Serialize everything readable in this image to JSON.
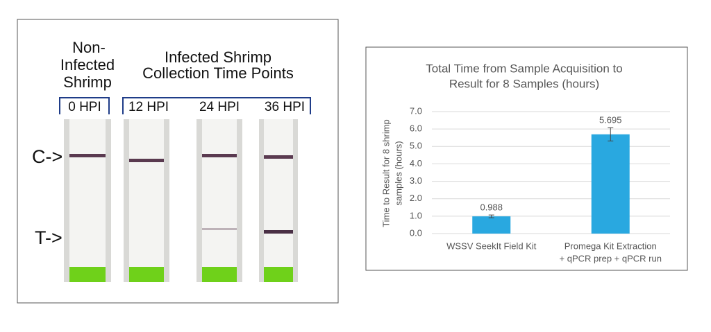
{
  "strip_panel": {
    "group_left": [
      "Non-",
      "Infected",
      "Shrimp"
    ],
    "group_right": [
      "Infected Shrimp",
      "Collection Time Points"
    ],
    "lanes": [
      "0 HPI",
      "12 HPI",
      "24 HPI",
      "36 HPI"
    ],
    "control_label": "C->",
    "test_label": "T->"
  },
  "chart_data": {
    "type": "bar",
    "title": [
      "Total Time from Sample Acquisition to",
      "Result for 8 Samples (hours)"
    ],
    "y_label": [
      "Time to Result for 8 shrimp",
      "samples (hours)"
    ],
    "categories": [
      [
        "WSSV SeekIt Field Kit"
      ],
      [
        "Promega Kit Extraction",
        "+ qPCR prep + qPCR run"
      ]
    ],
    "values": [
      0.988,
      5.695
    ],
    "errors": [
      0.08,
      0.38
    ],
    "color": "#29a8e0",
    "ylim": [
      0,
      7
    ],
    "yticks": [
      {
        "value": 0,
        "label": "0.0"
      },
      {
        "value": 1,
        "label": "1.0"
      },
      {
        "value": 2,
        "label": "2.0"
      },
      {
        "value": 3,
        "label": "3.0"
      },
      {
        "value": 4,
        "label": "4.0"
      },
      {
        "value": 5,
        "label": "5.0"
      },
      {
        "value": 6,
        "label": "6.0"
      },
      {
        "value": 7,
        "label": "7.0"
      }
    ],
    "grid": true
  }
}
